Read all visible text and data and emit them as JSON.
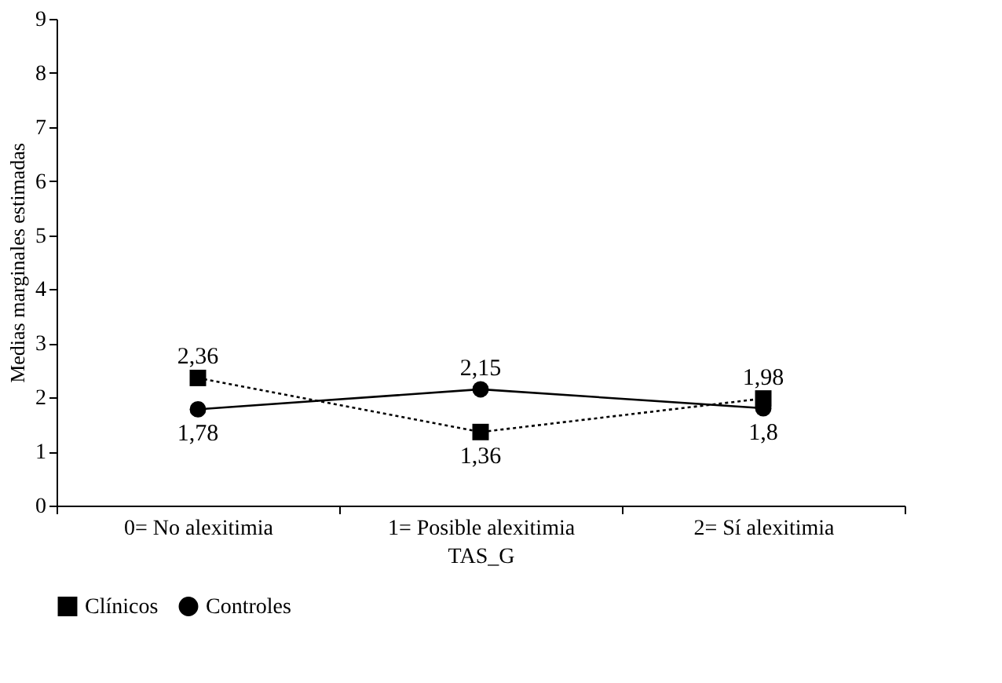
{
  "chart_data": {
    "type": "line",
    "xlabel": "TAS_G",
    "ylabel": "Medias marginales estimadas",
    "categories": [
      "0= No alexitimia",
      "1= Posible alexitimia",
      "2= Sí alexitimia"
    ],
    "series": [
      {
        "name": "Clínicos",
        "color": "#000000",
        "values": [
          2.36,
          1.36,
          1.98
        ],
        "value_labels": [
          "2,36",
          "1,36",
          "1,98"
        ],
        "marker": "square",
        "line_style": "dotted"
      },
      {
        "name": "Controles",
        "color": "#000000",
        "values": [
          1.78,
          2.15,
          1.8
        ],
        "value_labels": [
          "1,78",
          "2,15",
          "1,8"
        ],
        "marker": "circle",
        "line_style": "solid"
      }
    ],
    "ylim": [
      0,
      9
    ],
    "yticks": [
      0,
      1,
      2,
      3,
      4,
      5,
      6,
      7,
      8,
      9
    ],
    "grid": false,
    "legend": "bottom"
  }
}
